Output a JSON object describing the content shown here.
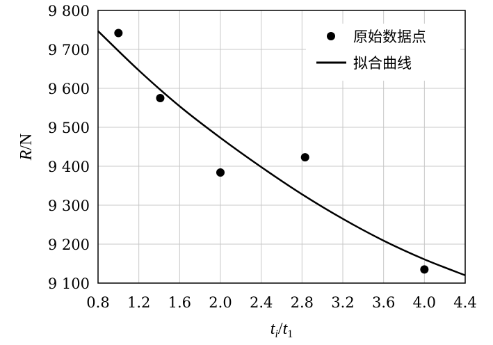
{
  "chart_data": {
    "type": "scatter",
    "xlim": [
      0.8,
      4.4
    ],
    "ylim": [
      9100,
      9800
    ],
    "x_ticks": [
      "0.8",
      "1.2",
      "1.6",
      "2.0",
      "2.4",
      "2.8",
      "3.2",
      "3.6",
      "4.0",
      "4.4"
    ],
    "x_tick_values": [
      0.8,
      1.2,
      1.6,
      2.0,
      2.4,
      2.8,
      3.2,
      3.6,
      4.0,
      4.4
    ],
    "y_ticks": [
      "9 100",
      "9 200",
      "9 300",
      "9 400",
      "9 500",
      "9 600",
      "9 700",
      "9 800"
    ],
    "y_tick_values": [
      9100,
      9200,
      9300,
      9400,
      9500,
      9600,
      9700,
      9800
    ],
    "xlabel": {
      "main": "t",
      "sub1": "i",
      "slash": "/",
      "main2": "t",
      "sub2": "1"
    },
    "ylabel": {
      "italic": "R",
      "rest": "/N"
    },
    "grid": true,
    "legend_position": "top-right",
    "series": [
      {
        "name": "原始数据点",
        "kind": "points",
        "color": "#000000",
        "points": [
          [
            1.0,
            9742
          ],
          [
            1.41,
            9575
          ],
          [
            2.0,
            9384
          ],
          [
            2.83,
            9423
          ],
          [
            4.0,
            9135
          ]
        ]
      },
      {
        "name": "拟合曲线",
        "kind": "line",
        "color": "#000000",
        "points": [
          [
            0.8,
            9747
          ],
          [
            1.2,
            9646
          ],
          [
            1.6,
            9554
          ],
          [
            2.0,
            9473
          ],
          [
            2.4,
            9398
          ],
          [
            2.8,
            9328
          ],
          [
            3.2,
            9265
          ],
          [
            3.6,
            9209
          ],
          [
            4.0,
            9161
          ],
          [
            4.4,
            9120
          ]
        ]
      }
    ]
  }
}
